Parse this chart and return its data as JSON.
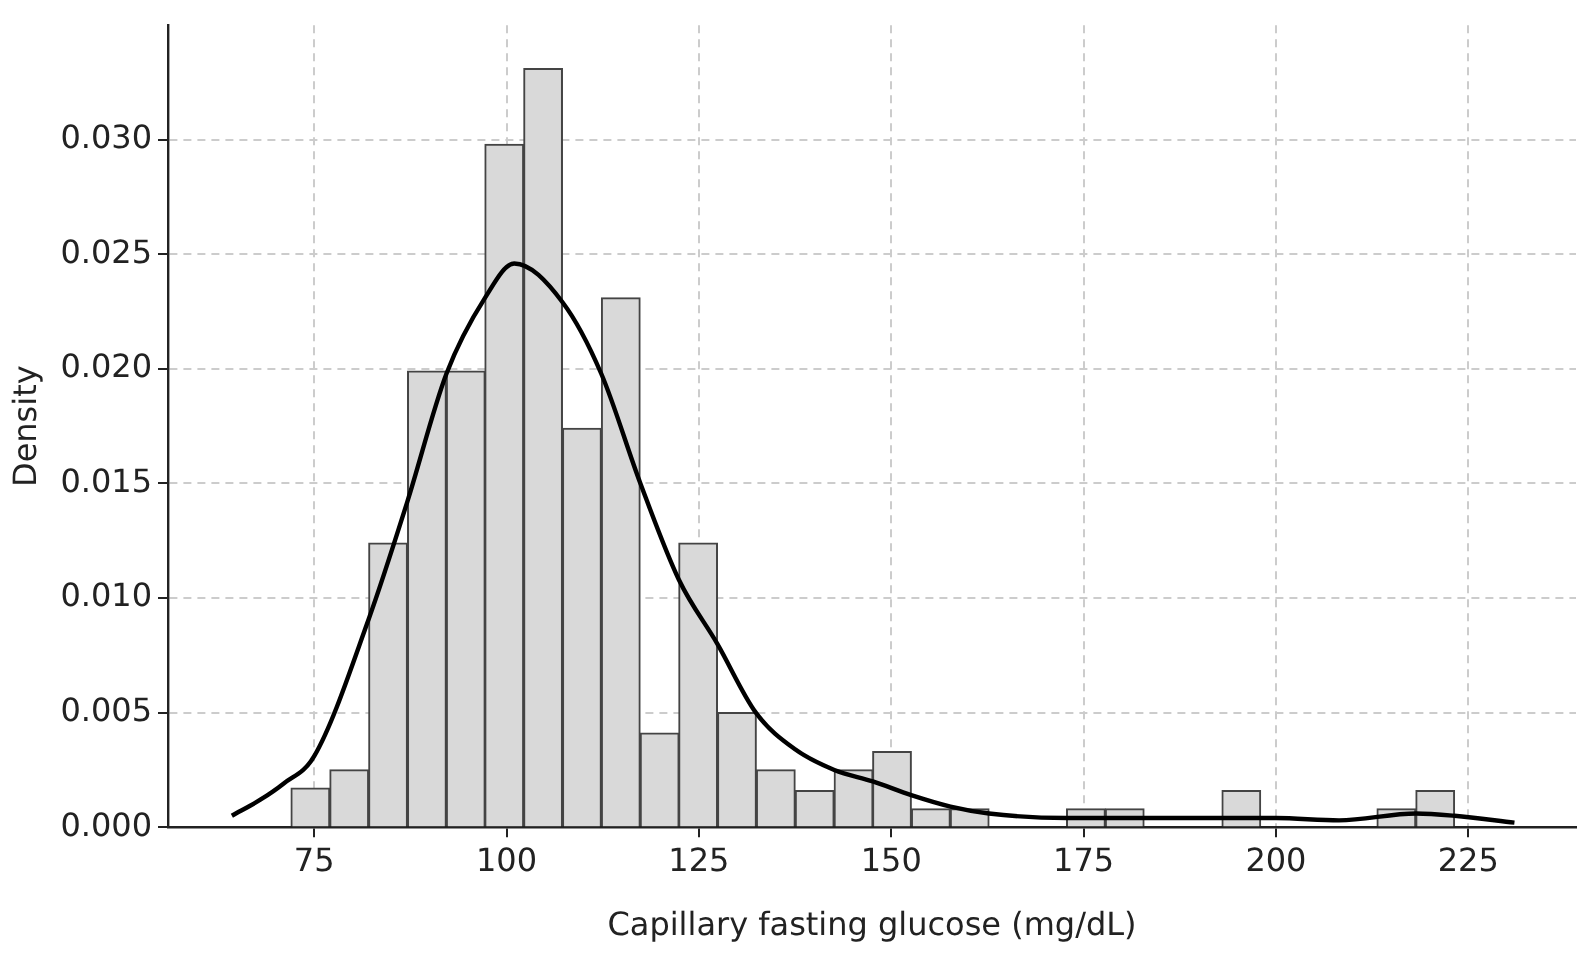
{
  "chart_data": {
    "type": "histogram",
    "xlabel": "Capillary fasting glucose (mg/dL)",
    "ylabel": "Density",
    "bins": [
      72.0,
      77.0,
      82.1,
      87.1,
      92.2,
      97.2,
      102.2,
      107.3,
      112.3,
      117.4,
      122.4,
      127.4,
      132.5,
      137.5,
      142.6,
      147.6,
      152.6,
      157.7,
      162.7,
      167.8,
      172.8,
      177.8,
      182.9,
      187.9,
      193.0,
      198.0,
      203.0,
      208.1,
      213.1,
      218.2,
      223.2
    ],
    "values": [
      0.0017,
      0.0025,
      0.0124,
      0.0199,
      0.0199,
      0.0298,
      0.0331,
      0.0174,
      0.0231,
      0.0041,
      0.0124,
      0.005,
      0.0025,
      0.0016,
      0.0025,
      0.0033,
      0.0008,
      0.0008,
      0,
      0,
      0.0008,
      0.0008,
      0,
      0,
      0.0016,
      0,
      0,
      0,
      0.0008,
      0.0016
    ],
    "color": "#d9d9d9",
    "series": [
      {
        "type": "line",
        "color": "#000000",
        "x": [
          64.3,
          68,
          71,
          75,
          82.1,
          87.1,
          92.2,
          97.2,
          101,
          107.3,
          112.3,
          117.4,
          122.4,
          127.4,
          132.4,
          137.5,
          142.6,
          147.6,
          152.6,
          157.7,
          162.7,
          172.8,
          182.9,
          193,
          200,
          208.2,
          218.2,
          223.2,
          231
        ],
        "values": [
          0.0005,
          0.0012,
          0.0019,
          0.0031,
          0.0091,
          0.0142,
          0.0198,
          0.0231,
          0.0246,
          0.0229,
          0.0198,
          0.015,
          0.0108,
          0.008,
          0.005,
          0.0034,
          0.0025,
          0.002,
          0.0014,
          0.0009,
          0.0006,
          0.0004,
          0.0004,
          0.0004,
          0.0004,
          0.0003,
          0.0006,
          0.0005,
          0.0002
        ]
      }
    ],
    "xlim": [
      56,
      239
    ],
    "xticks": [
      75,
      100,
      125,
      150,
      175,
      200,
      225
    ],
    "ylim": [
      0,
      0.035
    ],
    "yticks": [
      {
        "value": 0,
        "label": "0.000"
      },
      {
        "value": 0.005,
        "label": "0.005"
      },
      {
        "value": 0.01,
        "label": "0.010"
      },
      {
        "value": 0.015,
        "label": "0.015"
      },
      {
        "value": 0.02,
        "label": "0.020"
      },
      {
        "value": 0.025,
        "label": "0.025"
      },
      {
        "value": 0.03,
        "label": "0.030"
      }
    ],
    "grid": true,
    "line_style": "solid",
    "marker": "none"
  }
}
